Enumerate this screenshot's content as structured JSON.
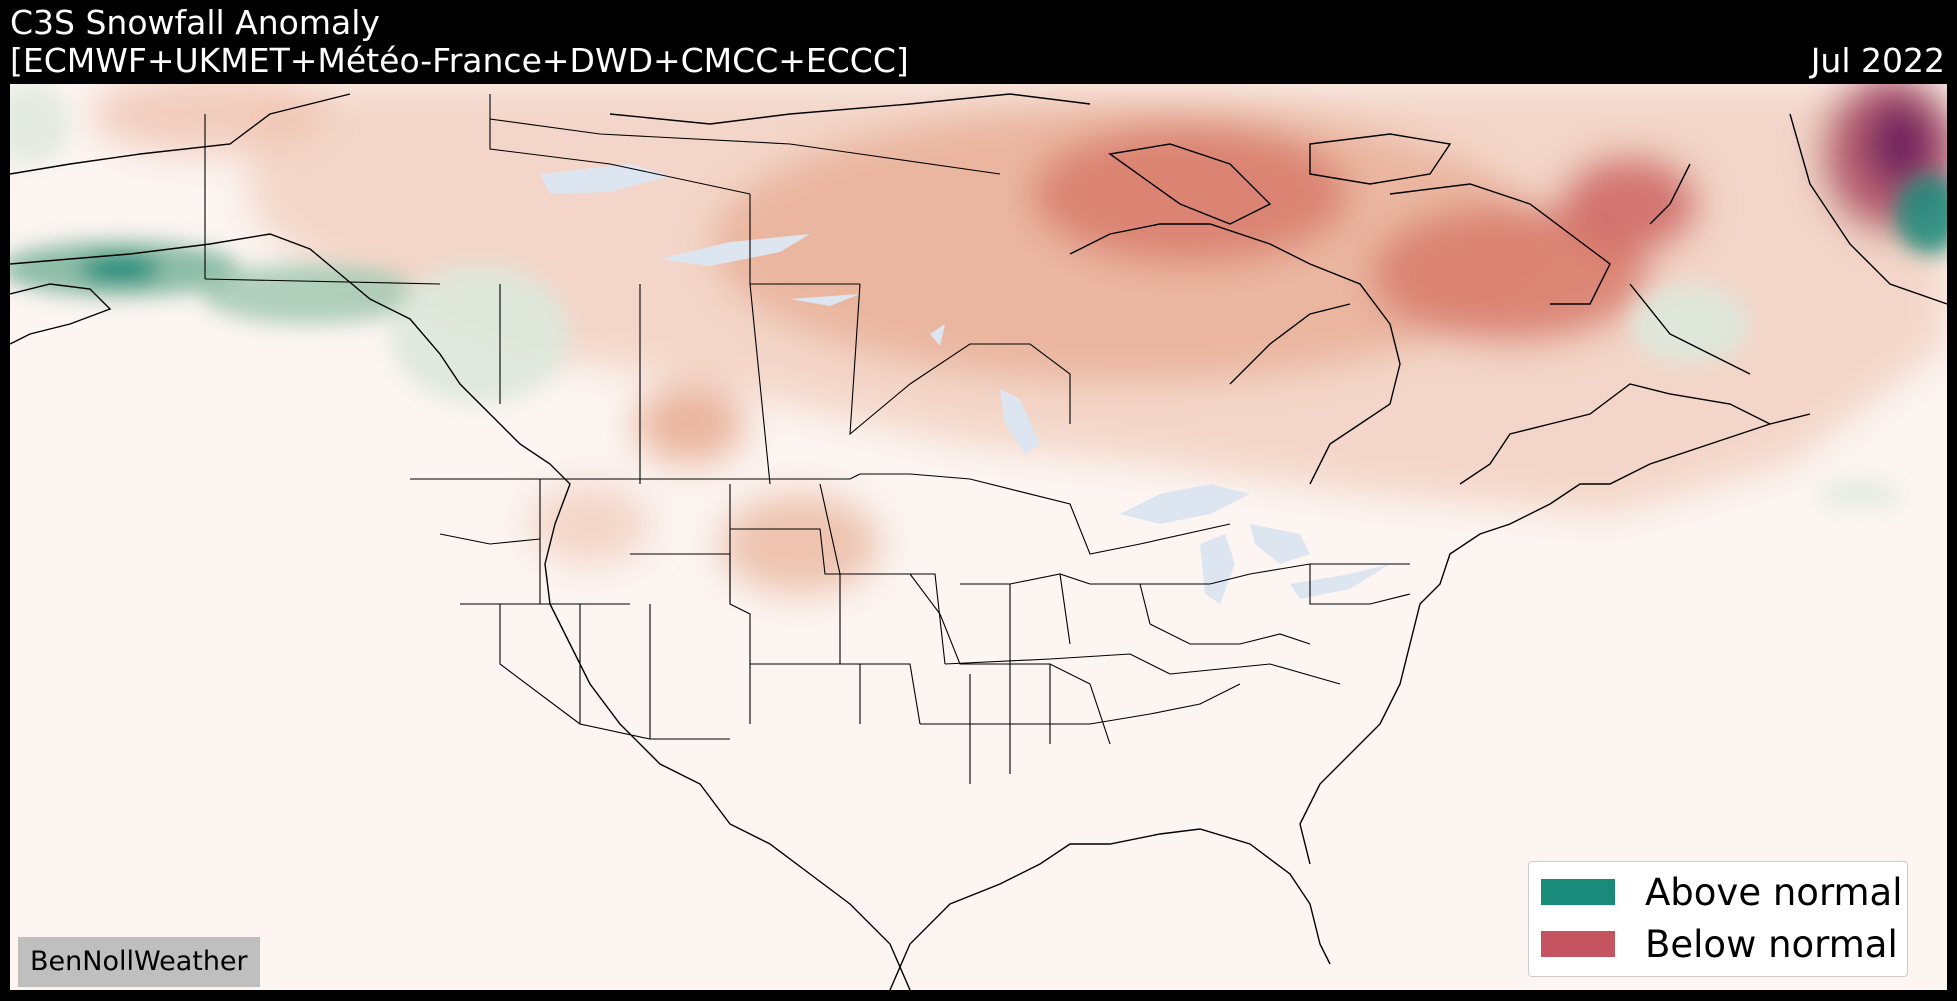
{
  "header": {
    "title_line1": "C3S Snowfall Anomaly",
    "title_line2": "[ECMWF+UKMET+Météo-France+DWD+CMCC+ECCC]",
    "valid_month": "Jul 2022"
  },
  "legend": {
    "items": [
      {
        "label": "Above normal",
        "color": "#1a8a7a"
      },
      {
        "label": "Below normal",
        "color": "#c65460"
      }
    ]
  },
  "credit": "BenNollWeather",
  "colors": {
    "background": "#fcf5f2",
    "above_strong": "#1a8a7a",
    "above_light": "#dde8dc",
    "below_light": "#f2d3c4",
    "below_medium": "#e6a58a",
    "below_strong": "#c65460",
    "below_extreme": "#6b1f5e",
    "water": "#dde6f0"
  }
}
